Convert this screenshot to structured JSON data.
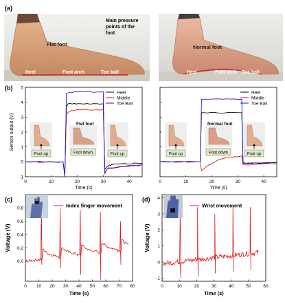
{
  "panels": {
    "a": "(a)",
    "b": "(b)",
    "c": "(c)",
    "d": "(d)"
  },
  "photos": {
    "flat": {
      "caption": "Main pressure points of the foot",
      "caption_lines": [
        "Main pressure",
        "points of the",
        "foot"
      ],
      "foot_label": "Flat foot",
      "labels": [
        "Heel",
        "Foot arch",
        "Toe ball"
      ]
    },
    "normal": {
      "foot_label": "Normal foot",
      "labels": [
        "Heel",
        "Foot arch",
        "Toe ball"
      ]
    }
  },
  "b_axes": {
    "ylabel": "Sensor output (V)",
    "xlabel": "Time (s)",
    "legend": [
      "Heel",
      "Middle",
      "Toe Ball"
    ],
    "colors": {
      "heel": "#000000",
      "middle": "#e01a1a",
      "toe": "#1a1ae0"
    },
    "left_title": "Flat foot",
    "right_title": "Normal foot",
    "foot_up": "Foot up",
    "foot_down": "Foot down"
  },
  "c_axes": {
    "ylabel": "Voltage (V)",
    "xlabel": "Time (s)",
    "legend": "Index finger movement",
    "color": "#e01a1a"
  },
  "d_axes": {
    "ylabel": "Voltage (V)",
    "xlabel": "Time (s)",
    "legend": "Wrist movement",
    "color": "#e01a1a"
  },
  "chart_data": [
    {
      "type": "line",
      "panel": "b-left",
      "title": "Flat foot",
      "xlabel": "Time (s)",
      "ylabel": "Sensor output (V)",
      "xlim": [
        0,
        45
      ],
      "ylim": [
        -1,
        5
      ],
      "xticks": [
        0,
        10,
        20,
        30,
        40
      ],
      "yticks": [
        -1,
        0,
        1,
        2,
        3,
        4,
        5
      ],
      "legend_position": "top-right",
      "series": [
        {
          "name": "Heel",
          "color": "#000000",
          "x": [
            0,
            14.5,
            15.2,
            15.8,
            16.5,
            20,
            30,
            30.6,
            31.5,
            34,
            45
          ],
          "y": [
            0,
            0,
            -0.9,
            3.7,
            3.9,
            3.9,
            3.9,
            -0.5,
            -0.3,
            -0.15,
            -0.1
          ]
        },
        {
          "name": "Middle",
          "color": "#e01a1a",
          "x": [
            0,
            14.5,
            15.2,
            15.8,
            17,
            20,
            30,
            30.6,
            32,
            45
          ],
          "y": [
            0,
            0,
            -0.8,
            3.2,
            3.4,
            3.5,
            3.5,
            -0.7,
            -0.4,
            -0.2
          ]
        },
        {
          "name": "Toe Ball",
          "color": "#1a1ae0",
          "x": [
            0,
            14.5,
            15.2,
            15.8,
            17,
            20,
            30,
            30.6,
            31.5,
            45
          ],
          "y": [
            0,
            0,
            -1.0,
            4.6,
            4.65,
            4.7,
            4.7,
            -0.8,
            -0.45,
            -0.2
          ]
        }
      ]
    },
    {
      "type": "line",
      "panel": "b-right",
      "title": "Normal foot",
      "xlabel": "Time (s)",
      "ylabel": "",
      "xlim": [
        0,
        45
      ],
      "ylim": [
        -1,
        5
      ],
      "xticks": [
        0,
        10,
        20,
        30,
        40
      ],
      "yticks": [
        -1,
        0,
        1,
        2,
        3,
        4,
        5
      ],
      "legend_position": "top-right",
      "series": [
        {
          "name": "Heel",
          "color": "#000000",
          "x": [
            0,
            15.5,
            16,
            17,
            30,
            31.5,
            32,
            33,
            45
          ],
          "y": [
            0,
            0,
            3.3,
            3.3,
            3.3,
            3.3,
            0,
            -0.1,
            -0.05
          ]
        },
        {
          "name": "Middle",
          "color": "#e01a1a",
          "x": [
            0,
            15.5,
            16,
            18,
            22,
            26,
            31.5,
            32,
            33,
            45
          ],
          "y": [
            0,
            0,
            -0.6,
            -0.3,
            0.1,
            0.3,
            0.4,
            -0.2,
            -0.2,
            -0.1
          ]
        },
        {
          "name": "Toe Ball",
          "color": "#1a1ae0",
          "x": [
            0,
            15.5,
            16,
            17,
            31.5,
            32,
            33,
            45
          ],
          "y": [
            0,
            0,
            4.2,
            4.2,
            4.2,
            -0.1,
            -0.1,
            -0.05
          ]
        }
      ]
    },
    {
      "type": "line",
      "panel": "c",
      "xlabel": "Time (s)",
      "ylabel": "Voltage (V)",
      "xlim": [
        0,
        80
      ],
      "ylim": [
        -0.3,
        1.0
      ],
      "xticks": [
        0,
        10,
        20,
        30,
        40,
        50,
        60,
        70,
        80
      ],
      "yticks": [
        0.0,
        0.2,
        0.4,
        0.6,
        0.8
      ],
      "series": [
        {
          "name": "Index finger movement",
          "color": "#e01a1a",
          "peaks_x": [
            12,
            26,
            41,
            56,
            71
          ],
          "peaks_y": [
            0.82,
            0.8,
            0.77,
            0.74,
            0.6
          ],
          "troughs_y": [
            -0.05,
            -0.1,
            -0.2,
            -0.28,
            -0.05
          ],
          "baseline_start": 0.0,
          "baseline_end": 0.18
        }
      ]
    },
    {
      "type": "line",
      "panel": "d",
      "xlabel": "Time (s)",
      "ylabel": "Voltage (V)",
      "xlim": [
        0,
        60
      ],
      "ylim": [
        -1.2,
        4.2
      ],
      "xticks": [
        0,
        10,
        20,
        30,
        40,
        50,
        60
      ],
      "yticks": [
        -1,
        0,
        1,
        2,
        3,
        4
      ],
      "series": [
        {
          "name": "Wrist movement",
          "color": "#e01a1a",
          "peaks_x": [
            10.5,
            20.5,
            30.5,
            41,
            51
          ],
          "peaks_y": [
            3.1,
            3.4,
            3.0,
            3.5,
            3.4
          ],
          "troughs_y": [
            -1.0,
            -0.9,
            -0.7,
            -0.6,
            -0.5
          ],
          "baseline_start": -0.1,
          "baseline_end": 0.6
        }
      ]
    }
  ]
}
